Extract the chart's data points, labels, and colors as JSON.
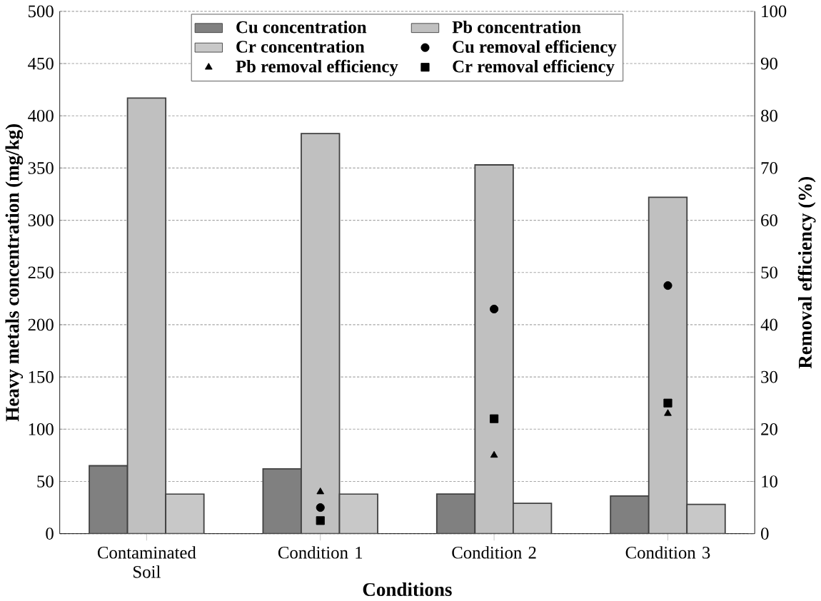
{
  "chart_data": {
    "type": "bar",
    "xlabel": "Conditions",
    "ylabel": "Heavy metals concentration (mg/kg)",
    "y2label": "Removal efficiency (%)",
    "categories": [
      "Contaminated Soil",
      "Condition 1",
      "Condition 2",
      "Condition 3"
    ],
    "series": [
      {
        "name": "Cu concentration",
        "color": "#808080",
        "values": [
          65,
          62,
          38,
          36
        ]
      },
      {
        "name": "Pb concentration",
        "color": "#c0c0c0",
        "values": [
          417,
          383,
          353,
          322
        ]
      },
      {
        "name": "Cr concentration",
        "color": "#c8c8c8",
        "values": [
          38,
          38,
          29,
          28
        ]
      },
      {
        "name": "Cu removal efficiency",
        "type": "scatter",
        "axis": "y2",
        "marker": "circle",
        "color": "#000000",
        "values": [
          null,
          5,
          43,
          47.5
        ]
      },
      {
        "name": "Pb removal efficiency",
        "type": "scatter",
        "axis": "y2",
        "marker": "triangle",
        "color": "#000000",
        "values": [
          null,
          8,
          15,
          23
        ]
      },
      {
        "name": "Cr removal efficiency",
        "type": "scatter",
        "axis": "y2",
        "marker": "square",
        "color": "#000000",
        "values": [
          null,
          2.5,
          22,
          25
        ]
      }
    ],
    "ylim": [
      0,
      500
    ],
    "yticks": [
      0,
      50,
      100,
      150,
      200,
      250,
      300,
      350,
      400,
      450,
      500
    ],
    "y2lim": [
      0,
      100
    ],
    "y2ticks": [
      0,
      10,
      20,
      30,
      40,
      50,
      60,
      70,
      80,
      90,
      100
    ],
    "grid": "y",
    "legend": "top"
  }
}
